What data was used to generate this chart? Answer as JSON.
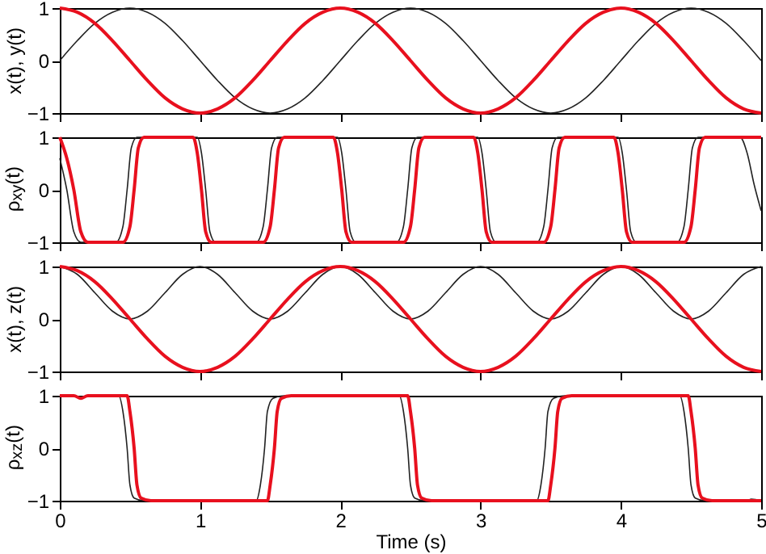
{
  "chart_data": [
    {
      "type": "line",
      "ylabel": "x(t), y(t)",
      "xlim": [
        0,
        5
      ],
      "xticks": [
        0,
        1,
        2,
        3,
        4,
        5
      ],
      "ylim": [
        -1,
        1
      ],
      "yticks": [
        -1,
        0,
        1
      ],
      "tick_labels": "y",
      "x": [
        0,
        0.125,
        0.25,
        0.375,
        0.5,
        0.625,
        0.75,
        0.875,
        1,
        1.125,
        1.25,
        1.375,
        1.5,
        1.625,
        1.75,
        1.875,
        2,
        2.125,
        2.25,
        2.375,
        2.5,
        2.625,
        2.75,
        2.875,
        3,
        3.125,
        3.25,
        3.375,
        3.5,
        3.625,
        3.75,
        3.875,
        4,
        4.125,
        4.25,
        4.375,
        4.5,
        4.625,
        4.75,
        4.875,
        5
      ],
      "series": [
        {
          "color": "#222222",
          "values": [
            0,
            0.38,
            0.71,
            0.92,
            1,
            0.92,
            0.71,
            0.38,
            0,
            -0.38,
            -0.71,
            -0.92,
            -1,
            -0.92,
            -0.71,
            -0.38,
            0,
            0.38,
            0.71,
            0.92,
            1,
            0.92,
            0.71,
            0.38,
            0,
            -0.38,
            -0.71,
            -0.92,
            -1,
            -0.92,
            -0.71,
            -0.38,
            0,
            0.38,
            0.71,
            0.92,
            1,
            0.92,
            0.71,
            0.38,
            0
          ]
        },
        {
          "color": "#e8101e",
          "values": [
            1,
            0.92,
            0.71,
            0.38,
            0,
            -0.38,
            -0.71,
            -0.92,
            -1,
            -0.92,
            -0.71,
            -0.38,
            0,
            0.38,
            0.71,
            0.92,
            1,
            0.92,
            0.71,
            0.38,
            0,
            -0.38,
            -0.71,
            -0.92,
            -1,
            -0.92,
            -0.71,
            -0.38,
            0,
            0.38,
            0.71,
            0.92,
            1,
            0.92,
            0.71,
            0.38,
            0,
            -0.38,
            -0.71,
            -0.92,
            -1
          ]
        }
      ]
    },
    {
      "type": "line",
      "ylabel": "ρ$_{xy}$(t)",
      "xlim": [
        0,
        5
      ],
      "xticks": [
        0,
        1,
        2,
        3,
        4,
        5
      ],
      "ylim": [
        -1,
        1
      ],
      "yticks": [
        -1,
        0,
        1
      ],
      "tick_labels": "y",
      "series": [
        {
          "color": "#222222",
          "x": [
            0,
            0.05,
            0.1,
            0.15,
            0.4,
            0.45,
            0.48,
            0.51,
            0.55,
            0.98,
            1.01,
            1.04,
            1.07,
            1.11,
            1.4,
            1.45,
            1.48,
            1.51,
            1.55,
            1.98,
            2.01,
            2.04,
            2.07,
            2.11,
            2.4,
            2.45,
            2.48,
            2.51,
            2.55,
            2.98,
            3.01,
            3.04,
            3.07,
            3.11,
            3.4,
            3.45,
            3.48,
            3.51,
            3.55,
            3.98,
            4.01,
            4.04,
            4.07,
            4.11,
            4.4,
            4.45,
            4.48,
            4.51,
            4.55,
            4.85,
            4.9,
            4.95,
            5
          ],
          "values": [
            0.6,
            0,
            -0.8,
            -1,
            -1,
            -0.7,
            0,
            0.8,
            1,
            1,
            0.7,
            0,
            -0.8,
            -1,
            -1,
            -0.7,
            0,
            0.8,
            1,
            1,
            0.7,
            0,
            -0.8,
            -1,
            -1,
            -0.7,
            0,
            0.8,
            1,
            1,
            0.7,
            0,
            -0.8,
            -1,
            -1,
            -0.7,
            0,
            0.8,
            1,
            1,
            0.7,
            0,
            -0.8,
            -1,
            -1,
            -0.7,
            0,
            0.8,
            1,
            1,
            0.7,
            0.1,
            -0.4
          ]
        },
        {
          "color": "#e8101e",
          "x": [
            0,
            0.05,
            0.1,
            0.15,
            0.2,
            0.45,
            0.5,
            0.53,
            0.56,
            0.6,
            0.95,
            0.98,
            1.01,
            1.04,
            1.08,
            1.45,
            1.5,
            1.53,
            1.56,
            1.6,
            1.95,
            1.98,
            2.01,
            2.04,
            2.08,
            2.45,
            2.5,
            2.53,
            2.56,
            2.6,
            2.95,
            2.98,
            3.01,
            3.04,
            3.08,
            3.45,
            3.5,
            3.53,
            3.56,
            3.6,
            3.95,
            3.98,
            4.01,
            4.04,
            4.08,
            4.45,
            4.5,
            4.53,
            4.56,
            4.6,
            5
          ],
          "values": [
            1,
            0.6,
            0,
            -0.8,
            -1,
            -1,
            -0.7,
            0,
            0.8,
            1,
            1,
            0.7,
            0,
            -0.8,
            -1,
            -1,
            -0.7,
            0,
            0.8,
            1,
            1,
            0.7,
            0,
            -0.8,
            -1,
            -1,
            -0.7,
            0,
            0.8,
            1,
            1,
            0.7,
            0,
            -0.8,
            -1,
            -1,
            -0.7,
            0,
            0.8,
            1,
            1,
            0.7,
            0,
            -0.8,
            -1,
            -1,
            -0.7,
            0,
            0.8,
            1,
            1
          ]
        }
      ]
    },
    {
      "type": "line",
      "ylabel": "x(t), z(t)",
      "xlim": [
        0,
        5
      ],
      "xticks": [
        0,
        1,
        2,
        3,
        4,
        5
      ],
      "ylim": [
        -1,
        1
      ],
      "yticks": [
        -1,
        0,
        1
      ],
      "tick_labels": "y",
      "x": [
        0,
        0.125,
        0.25,
        0.375,
        0.5,
        0.625,
        0.75,
        0.875,
        1,
        1.125,
        1.25,
        1.375,
        1.5,
        1.625,
        1.75,
        1.875,
        2,
        2.125,
        2.25,
        2.375,
        2.5,
        2.625,
        2.75,
        2.875,
        3,
        3.125,
        3.25,
        3.375,
        3.5,
        3.625,
        3.75,
        3.875,
        4,
        4.125,
        4.25,
        4.375,
        4.5,
        4.625,
        4.75,
        4.875,
        5
      ],
      "series": [
        {
          "color": "#222222",
          "values": [
            1,
            0.85,
            0.5,
            0.15,
            0,
            0.15,
            0.5,
            0.85,
            1,
            0.85,
            0.5,
            0.15,
            0,
            0.15,
            0.5,
            0.85,
            1,
            0.85,
            0.5,
            0.15,
            0,
            0.15,
            0.5,
            0.85,
            1,
            0.85,
            0.5,
            0.15,
            0,
            0.15,
            0.5,
            0.85,
            1,
            0.85,
            0.5,
            0.15,
            0,
            0.15,
            0.5,
            0.85,
            1
          ]
        },
        {
          "color": "#e8101e",
          "values": [
            1,
            0.92,
            0.71,
            0.38,
            0,
            -0.38,
            -0.71,
            -0.92,
            -1,
            -0.92,
            -0.71,
            -0.38,
            0,
            0.38,
            0.71,
            0.92,
            1,
            0.92,
            0.71,
            0.38,
            0,
            -0.38,
            -0.71,
            -0.92,
            -1,
            -0.92,
            -0.71,
            -0.38,
            0,
            0.38,
            0.71,
            0.92,
            1,
            0.92,
            0.71,
            0.38,
            0,
            -0.38,
            -0.71,
            -0.92,
            -1
          ]
        }
      ]
    },
    {
      "type": "line",
      "ylabel": "ρ$_{xz}$(t)",
      "xlabel": "Time (s)",
      "xlim": [
        0,
        5
      ],
      "xticks": [
        0,
        1,
        2,
        3,
        4,
        5
      ],
      "ylim": [
        -1,
        1
      ],
      "yticks": [
        -1,
        0,
        1
      ],
      "series": [
        {
          "color": "#222222",
          "x": [
            0,
            0.1,
            0.15,
            0.2,
            0.42,
            0.45,
            0.48,
            0.5,
            0.53,
            0.6,
            1.4,
            1.43,
            1.46,
            1.48,
            1.52,
            1.6,
            2.42,
            2.45,
            2.48,
            2.5,
            2.53,
            2.6,
            3.4,
            3.43,
            3.46,
            3.48,
            3.52,
            3.6,
            4.42,
            4.45,
            4.48,
            4.5,
            4.53,
            4.6,
            4.9,
            4.93,
            5
          ],
          "values": [
            1,
            1,
            0.95,
            1,
            1,
            0.7,
            0,
            -0.7,
            -0.95,
            -1,
            -1,
            -0.7,
            0,
            0.7,
            0.95,
            1,
            1,
            0.7,
            0,
            -0.7,
            -0.95,
            -1,
            -1,
            -0.7,
            0,
            0.7,
            0.95,
            1,
            1,
            0.7,
            0,
            -0.7,
            -0.95,
            -1,
            -1,
            -0.97,
            -1
          ]
        },
        {
          "color": "#e8101e",
          "x": [
            0,
            0.1,
            0.15,
            0.2,
            0.48,
            0.5,
            0.53,
            0.55,
            0.58,
            0.65,
            1.48,
            1.5,
            1.53,
            1.55,
            1.58,
            1.65,
            2.48,
            2.5,
            2.53,
            2.55,
            2.58,
            2.65,
            3.48,
            3.5,
            3.53,
            3.55,
            3.58,
            3.65,
            4.48,
            4.5,
            4.53,
            4.55,
            4.58,
            4.65,
            5
          ],
          "values": [
            1,
            1,
            0.95,
            1,
            1,
            0.7,
            0,
            -0.7,
            -0.95,
            -1,
            -1,
            -0.7,
            0,
            0.7,
            0.95,
            1,
            1,
            0.7,
            0,
            -0.7,
            -0.95,
            -1,
            -1,
            -0.7,
            0,
            0.7,
            0.95,
            1,
            1,
            0.7,
            0,
            -0.7,
            -0.95,
            -1,
            -1
          ]
        }
      ]
    }
  ]
}
